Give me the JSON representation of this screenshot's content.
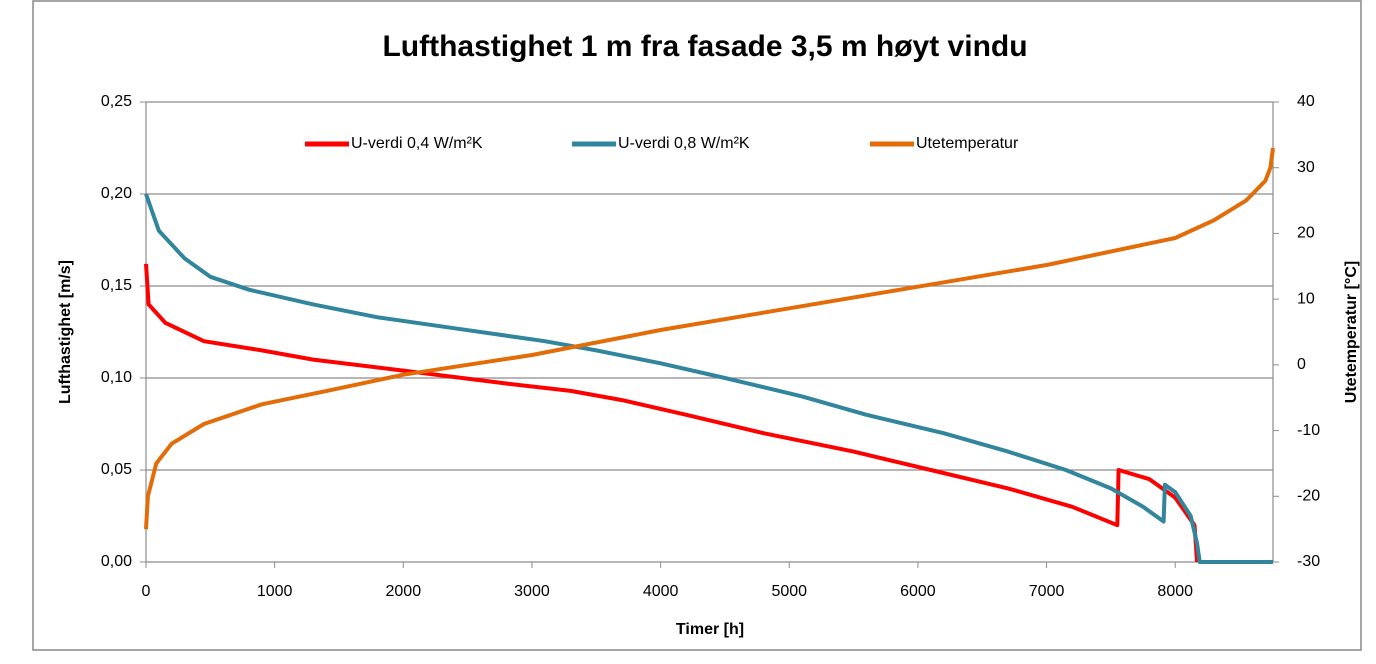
{
  "chart_data": {
    "type": "line",
    "title": "Lufthastighet 1 m fra fasade 3,5 m høyt vindu",
    "xlabel": "Timer [h]",
    "ylabel": "Lufthastighet [m/s]",
    "y2label": "Utetemperatur [°C]",
    "xlim": [
      0,
      8760
    ],
    "xticks": [
      0,
      1000,
      2000,
      3000,
      4000,
      5000,
      6000,
      7000,
      8000
    ],
    "ylim": [
      0,
      0.25
    ],
    "yticks": [
      {
        "value": 0,
        "label": "0,00"
      },
      {
        "value": 0.05,
        "label": "0,05"
      },
      {
        "value": 0.1,
        "label": "0,10"
      },
      {
        "value": 0.15,
        "label": "0,15"
      },
      {
        "value": 0.2,
        "label": "0,20"
      },
      {
        "value": 0.25,
        "label": "0,25"
      }
    ],
    "y2lim": [
      -30,
      40
    ],
    "y2ticks": [
      -30,
      -20,
      -10,
      0,
      10,
      20,
      30,
      40
    ],
    "grid": true,
    "legend": "top",
    "series": [
      {
        "name": "U-verdi 0,4 W/m²K",
        "color": "#ff0000",
        "x": [
          0,
          20,
          150,
          450,
          900,
          1300,
          2000,
          2800,
          3300,
          3700,
          4200,
          4800,
          5500,
          6100,
          6700,
          7200,
          7550,
          7560,
          7800,
          8000,
          8150,
          8170
        ],
        "values": [
          0.162,
          0.14,
          0.13,
          0.12,
          0.115,
          0.11,
          0.104,
          0.097,
          0.093,
          0.088,
          0.08,
          0.07,
          0.06,
          0.05,
          0.04,
          0.03,
          0.02,
          0.05,
          0.045,
          0.035,
          0.02,
          0
        ]
      },
      {
        "name": "U-verdi 0,8 W/m²K",
        "color": "#31859c",
        "x": [
          0,
          100,
          300,
          500,
          800,
          1300,
          1800,
          2400,
          3100,
          3500,
          4000,
          4500,
          5100,
          5600,
          6200,
          6700,
          7150,
          7500,
          7750,
          7910,
          7920,
          8000,
          8120,
          8170,
          8190,
          8760
        ],
        "values": [
          0.2,
          0.18,
          0.165,
          0.155,
          0.148,
          0.14,
          0.133,
          0.127,
          0.12,
          0.115,
          0.108,
          0.1,
          0.09,
          0.08,
          0.07,
          0.06,
          0.05,
          0.04,
          0.03,
          0.022,
          0.042,
          0.038,
          0.025,
          0.01,
          0,
          0
        ]
      },
      {
        "name": "Utetemperatur",
        "color": "#e36c09",
        "axis": "y2",
        "x": [
          0,
          15,
          80,
          200,
          450,
          900,
          1400,
          2000,
          3000,
          4000,
          5000,
          6000,
          7000,
          8000,
          8300,
          8550,
          8700,
          8740,
          8760
        ],
        "values": [
          -25,
          -20,
          -15,
          -12,
          -9,
          -6,
          -4,
          -1.5,
          1.5,
          5.3,
          8.6,
          11.9,
          15.2,
          19.3,
          22,
          25,
          28,
          30,
          33
        ]
      }
    ]
  }
}
